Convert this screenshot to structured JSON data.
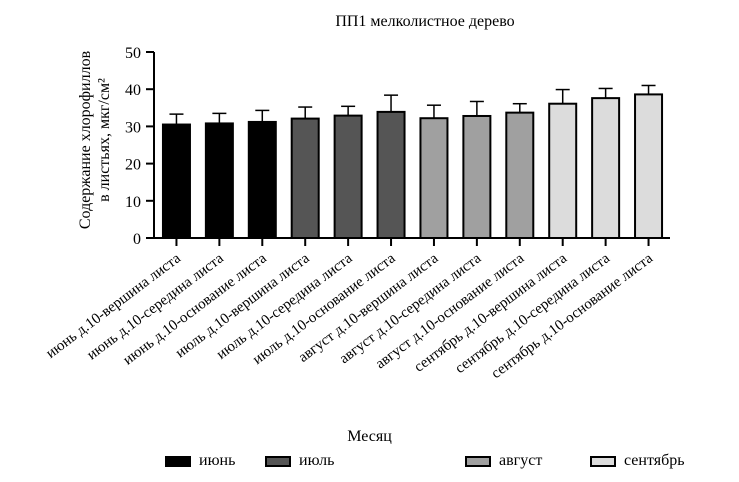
{
  "chart_data": {
    "type": "bar",
    "title": "ПП1 мелколистное дерево",
    "ylabel_line1": "Содержание хлорофиллов",
    "ylabel_line2": "в листьях, мкг/см²",
    "ylim": [
      0,
      50
    ],
    "yticks": [
      0,
      10,
      20,
      30,
      40,
      50
    ],
    "categories": [
      "июнь д.10-вершина листа",
      "июнь д.10-середина листа",
      "июнь д.10-основание листа",
      "июль д.10-вершина листа",
      "июль д.10-середина листа",
      "июль д.10-основание листа",
      "август д.10-вершина листа",
      "август д.10-середина листа",
      "август д.10-основание листа",
      "сентябрь д.10-вершина листа",
      "сентябрь д.10-середина листа",
      "сентябрь д.10-основание листа"
    ],
    "values": [
      30.5,
      30.8,
      31.2,
      32.1,
      32.9,
      33.9,
      32.2,
      32.8,
      33.7,
      36.1,
      37.6,
      38.6
    ],
    "errors": [
      2.8,
      2.7,
      3.1,
      3.1,
      2.5,
      4.5,
      3.5,
      3.9,
      2.4,
      3.8,
      2.6,
      2.4
    ],
    "groups": [
      0,
      0,
      0,
      1,
      1,
      1,
      2,
      2,
      2,
      3,
      3,
      3
    ],
    "legend_title": "Месяц",
    "legend": [
      {
        "label": "июнь",
        "color": "#000000"
      },
      {
        "label": "июль",
        "color": "#555555"
      },
      {
        "label": "август",
        "color": "#a0a0a0"
      },
      {
        "label": "сентябрь",
        "color": "#dcdcdc"
      }
    ],
    "grid": false
  }
}
